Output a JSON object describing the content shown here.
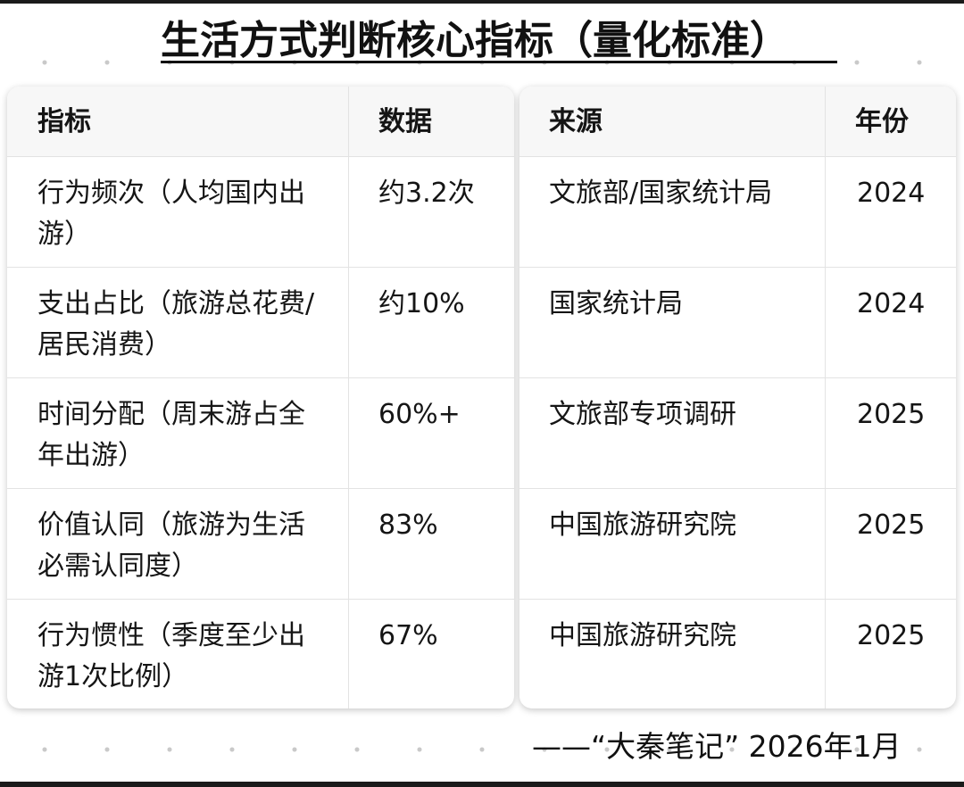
{
  "title": "生活方式判断核心指标（量化标准）",
  "left_table": {
    "headers": [
      "指标",
      "数据"
    ],
    "rows": [
      {
        "indicator": "行为频次（人均国内出游）",
        "value": "约3.2次"
      },
      {
        "indicator": "支出占比（旅游总花费/居民消费）",
        "value": "约10%"
      },
      {
        "indicator": "时间分配（周末游占全年出游）",
        "value": "60%+"
      },
      {
        "indicator": "价值认同（旅游为生活必需认同度）",
        "value": "83%"
      },
      {
        "indicator": "行为惯性（季度至少出游1次比例）",
        "value": "67%"
      }
    ]
  },
  "right_table": {
    "headers": [
      "来源",
      "年份"
    ],
    "rows": [
      {
        "source": "文旅部/国家统计局",
        "year": "2024"
      },
      {
        "source": "国家统计局",
        "year": "2024"
      },
      {
        "source": "文旅部专项调研",
        "year": "2025"
      },
      {
        "source": "中国旅游研究院",
        "year": "2025"
      },
      {
        "source": "中国旅游研究院",
        "year": "2025"
      }
    ]
  },
  "footer": "——“大秦笔记” 2026年1月"
}
